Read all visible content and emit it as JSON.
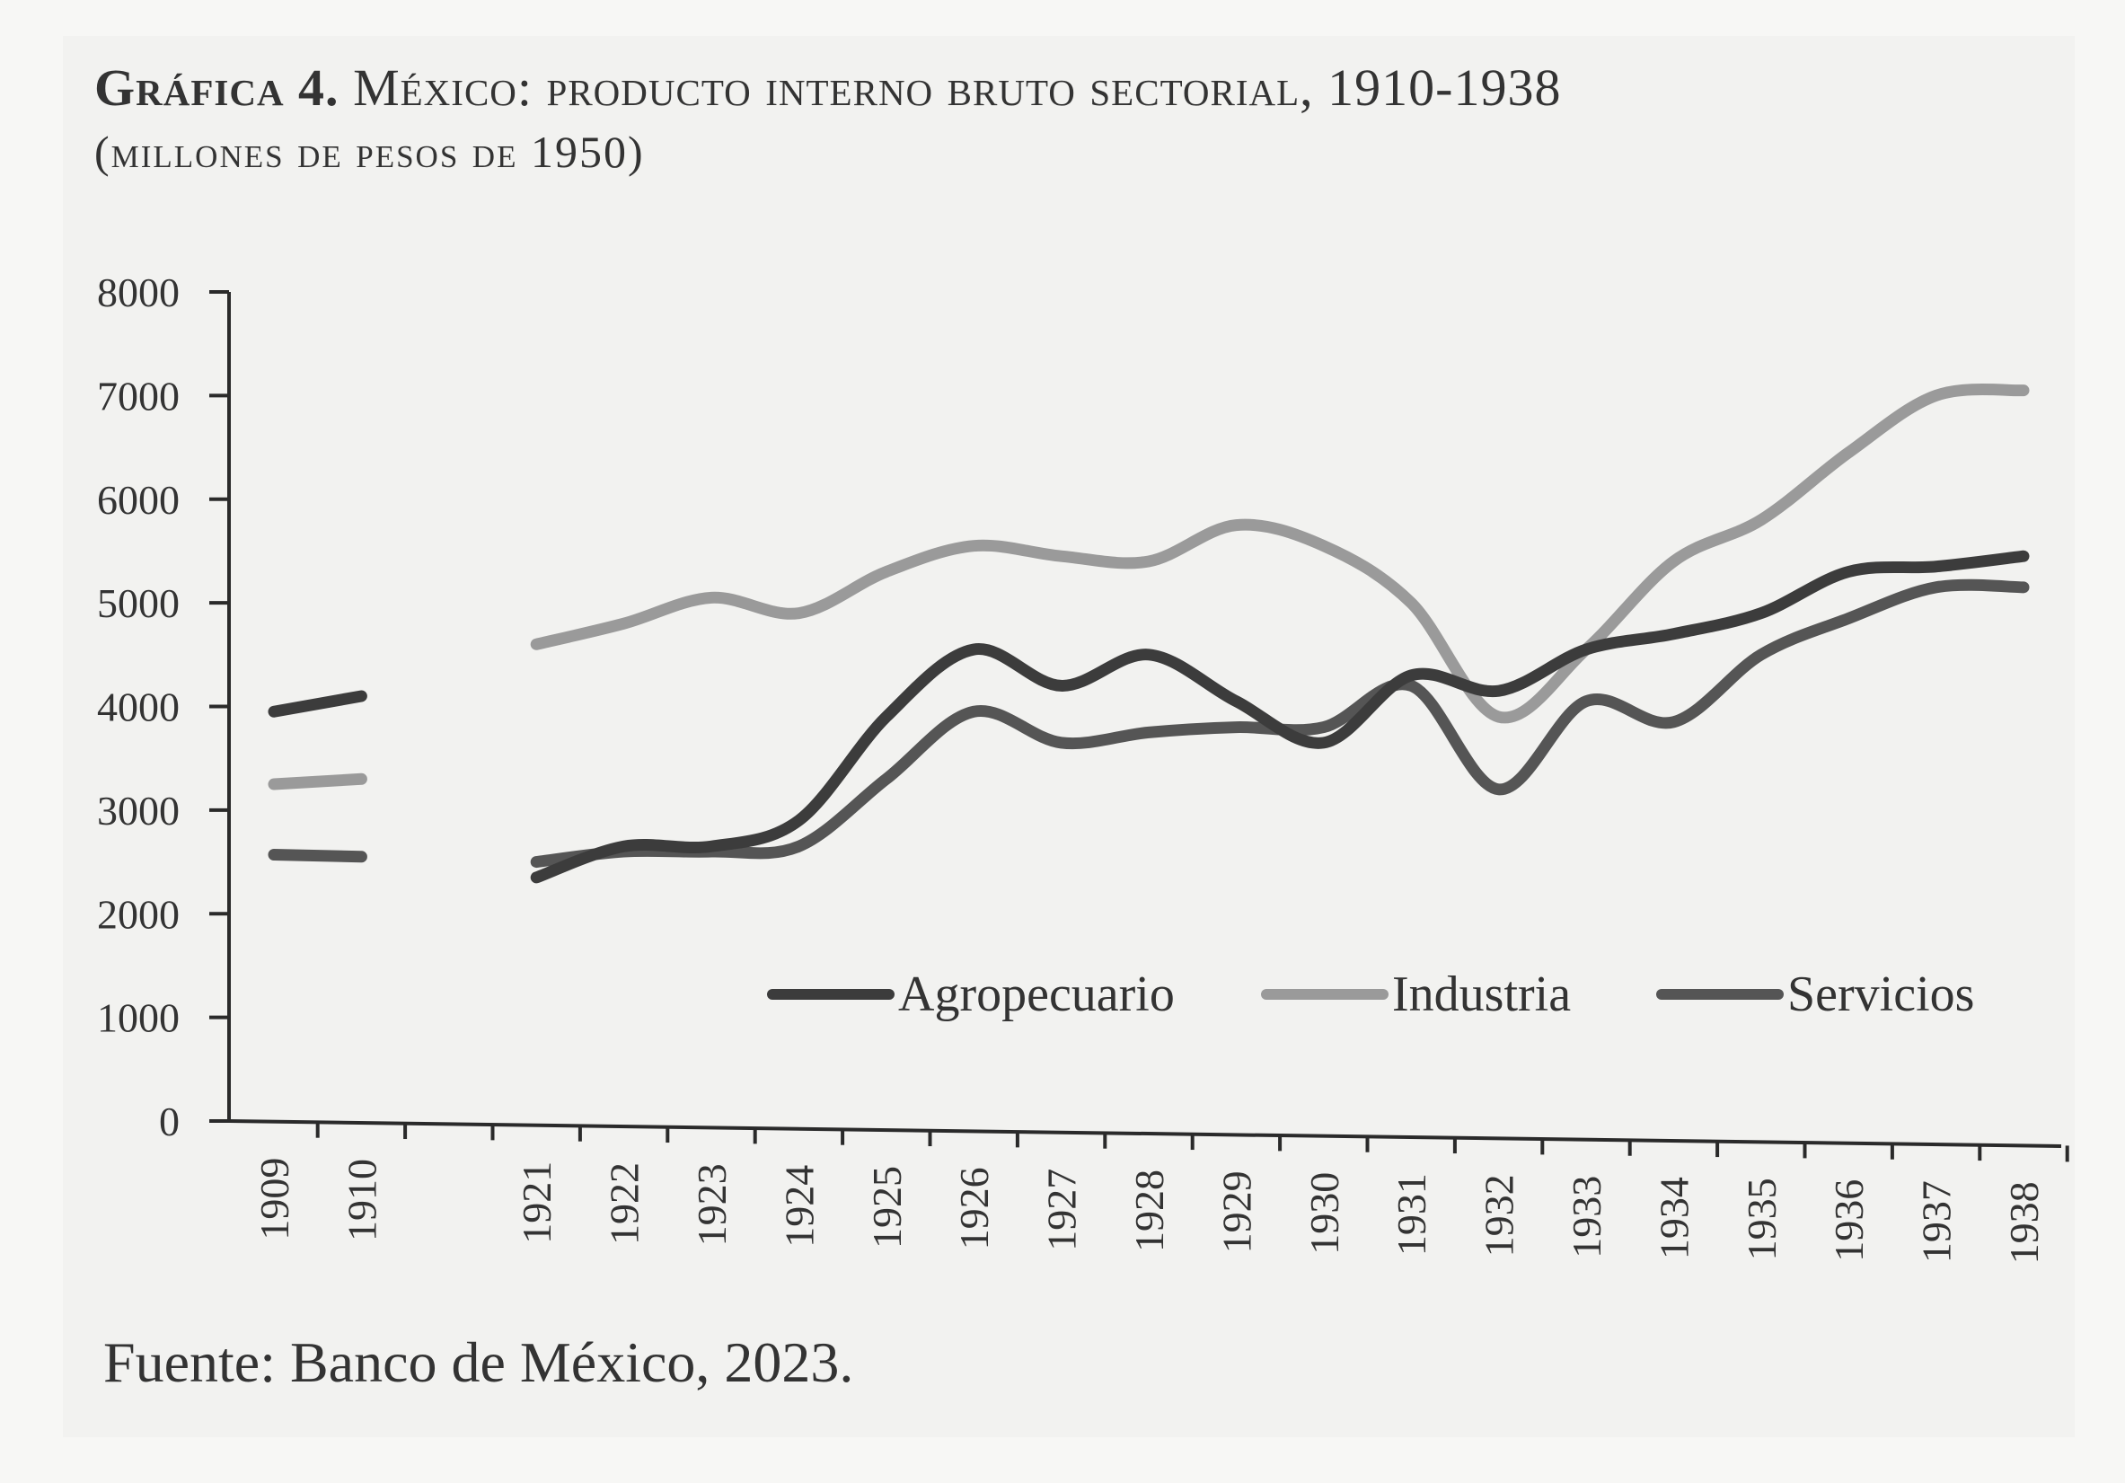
{
  "title": {
    "label": "Gráfica 4.",
    "text": "México: producto interno bruto sectorial, 1910-1938",
    "subtitle": "(millones de pesos de 1950)"
  },
  "source": "Fuente: Banco de México, 2023.",
  "colors": {
    "agropecuario": "#3c3c3c",
    "industria": "#9a9a9a",
    "servicios": "#555555",
    "axis": "#2a2a2a"
  },
  "chart_data": {
    "type": "line",
    "title": "México: producto interno bruto sectorial, 1910-1938",
    "xlabel": "",
    "ylabel": "",
    "ylim": [
      0,
      8000
    ],
    "yticks": [
      0,
      1000,
      2000,
      3000,
      4000,
      5000,
      6000,
      7000,
      8000
    ],
    "categories": [
      "1909",
      "1910",
      "",
      "1921",
      "1922",
      "1923",
      "1924",
      "1925",
      "1926",
      "1927",
      "1928",
      "1929",
      "1930",
      "1931",
      "1932",
      "1933",
      "1934",
      "1935",
      "1936",
      "1937",
      "1938"
    ],
    "legend_position": "bottom-right (inside plot)",
    "grid": false,
    "series": [
      {
        "name": "Agropecuario",
        "color": "#3c3c3c",
        "segments": [
          {
            "x": [
              "1909",
              "1910"
            ],
            "y": [
              3950,
              4100
            ]
          },
          {
            "x": [
              "1921",
              "1922",
              "1923",
              "1924",
              "1925",
              "1926",
              "1927",
              "1928",
              "1929",
              "1930",
              "1931",
              "1932",
              "1933",
              "1934",
              "1935",
              "1936",
              "1937",
              "1938"
            ],
            "y": [
              2350,
              2650,
              2650,
              2900,
              3900,
              4550,
              4200,
              4500,
              4050,
              3650,
              4300,
              4150,
              4550,
              4700,
              4900,
              5300,
              5350,
              5450
            ]
          }
        ]
      },
      {
        "name": "Industria",
        "color": "#9a9a9a",
        "segments": [
          {
            "x": [
              "1909",
              "1910"
            ],
            "y": [
              3250,
              3300
            ]
          },
          {
            "x": [
              "1921",
              "1922",
              "1923",
              "1924",
              "1925",
              "1926",
              "1927",
              "1928",
              "1929",
              "1930",
              "1931",
              "1932",
              "1933",
              "1934",
              "1935",
              "1936",
              "1937",
              "1938"
            ],
            "y": [
              4600,
              4800,
              5050,
              4900,
              5300,
              5550,
              5450,
              5400,
              5750,
              5550,
              5000,
              3900,
              4550,
              5400,
              5800,
              6450,
              7000,
              7050
            ]
          }
        ]
      },
      {
        "name": "Servicios",
        "color": "#555555",
        "segments": [
          {
            "x": [
              "1909",
              "1910"
            ],
            "y": [
              2570,
              2550
            ]
          },
          {
            "x": [
              "1921",
              "1922",
              "1923",
              "1924",
              "1925",
              "1926",
              "1927",
              "1928",
              "1929",
              "1930",
              "1931",
              "1932",
              "1933",
              "1934",
              "1935",
              "1936",
              "1937",
              "1938"
            ],
            "y": [
              2500,
              2600,
              2600,
              2650,
              3300,
              3950,
              3650,
              3750,
              3800,
              3800,
              4200,
              3200,
              4050,
              3850,
              4500,
              4850,
              5150,
              5150
            ]
          }
        ]
      }
    ]
  }
}
